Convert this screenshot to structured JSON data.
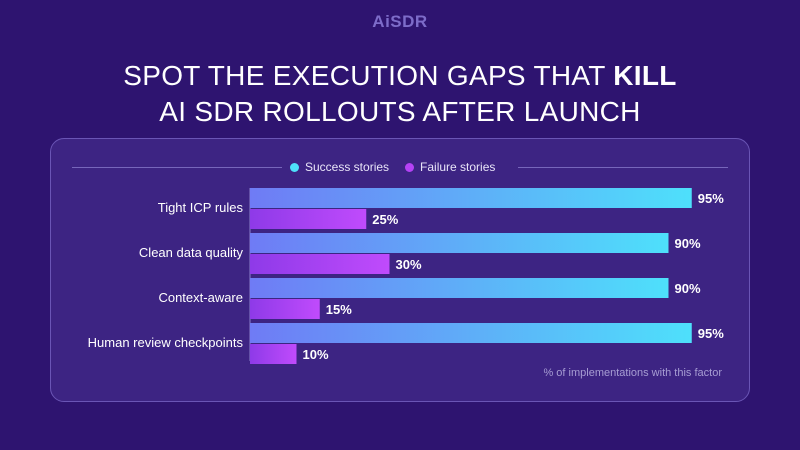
{
  "brand": {
    "logo_text": "AiSDR"
  },
  "headline": {
    "line1_regular": "SPOT THE EXECUTION GAPS THAT ",
    "line1_bold": "KILL",
    "line2": "AI SDR ROLLOUTS AFTER LAUNCH"
  },
  "footnote": "% of implementations with this  factor",
  "colors": {
    "background": "#2e1470",
    "success_start": "#6f7bf5",
    "success_end": "#4ee0fb",
    "failure_start": "#8e3ae8",
    "failure_end": "#c04bfc"
  },
  "chart_data": {
    "type": "bar",
    "orientation": "horizontal",
    "categories": [
      "Tight ICP rules",
      "Clean data quality",
      "Context-aware",
      "Human review checkpoints"
    ],
    "series": [
      {
        "name": "Success stories",
        "color": "#4ee0fb",
        "values": [
          95,
          90,
          90,
          95
        ]
      },
      {
        "name": "Failure stories",
        "color": "#b542f5",
        "values": [
          25,
          30,
          15,
          10
        ]
      }
    ],
    "unit": "%",
    "xlim": [
      0,
      100
    ],
    "legend_position": "top-center",
    "grid": false
  }
}
